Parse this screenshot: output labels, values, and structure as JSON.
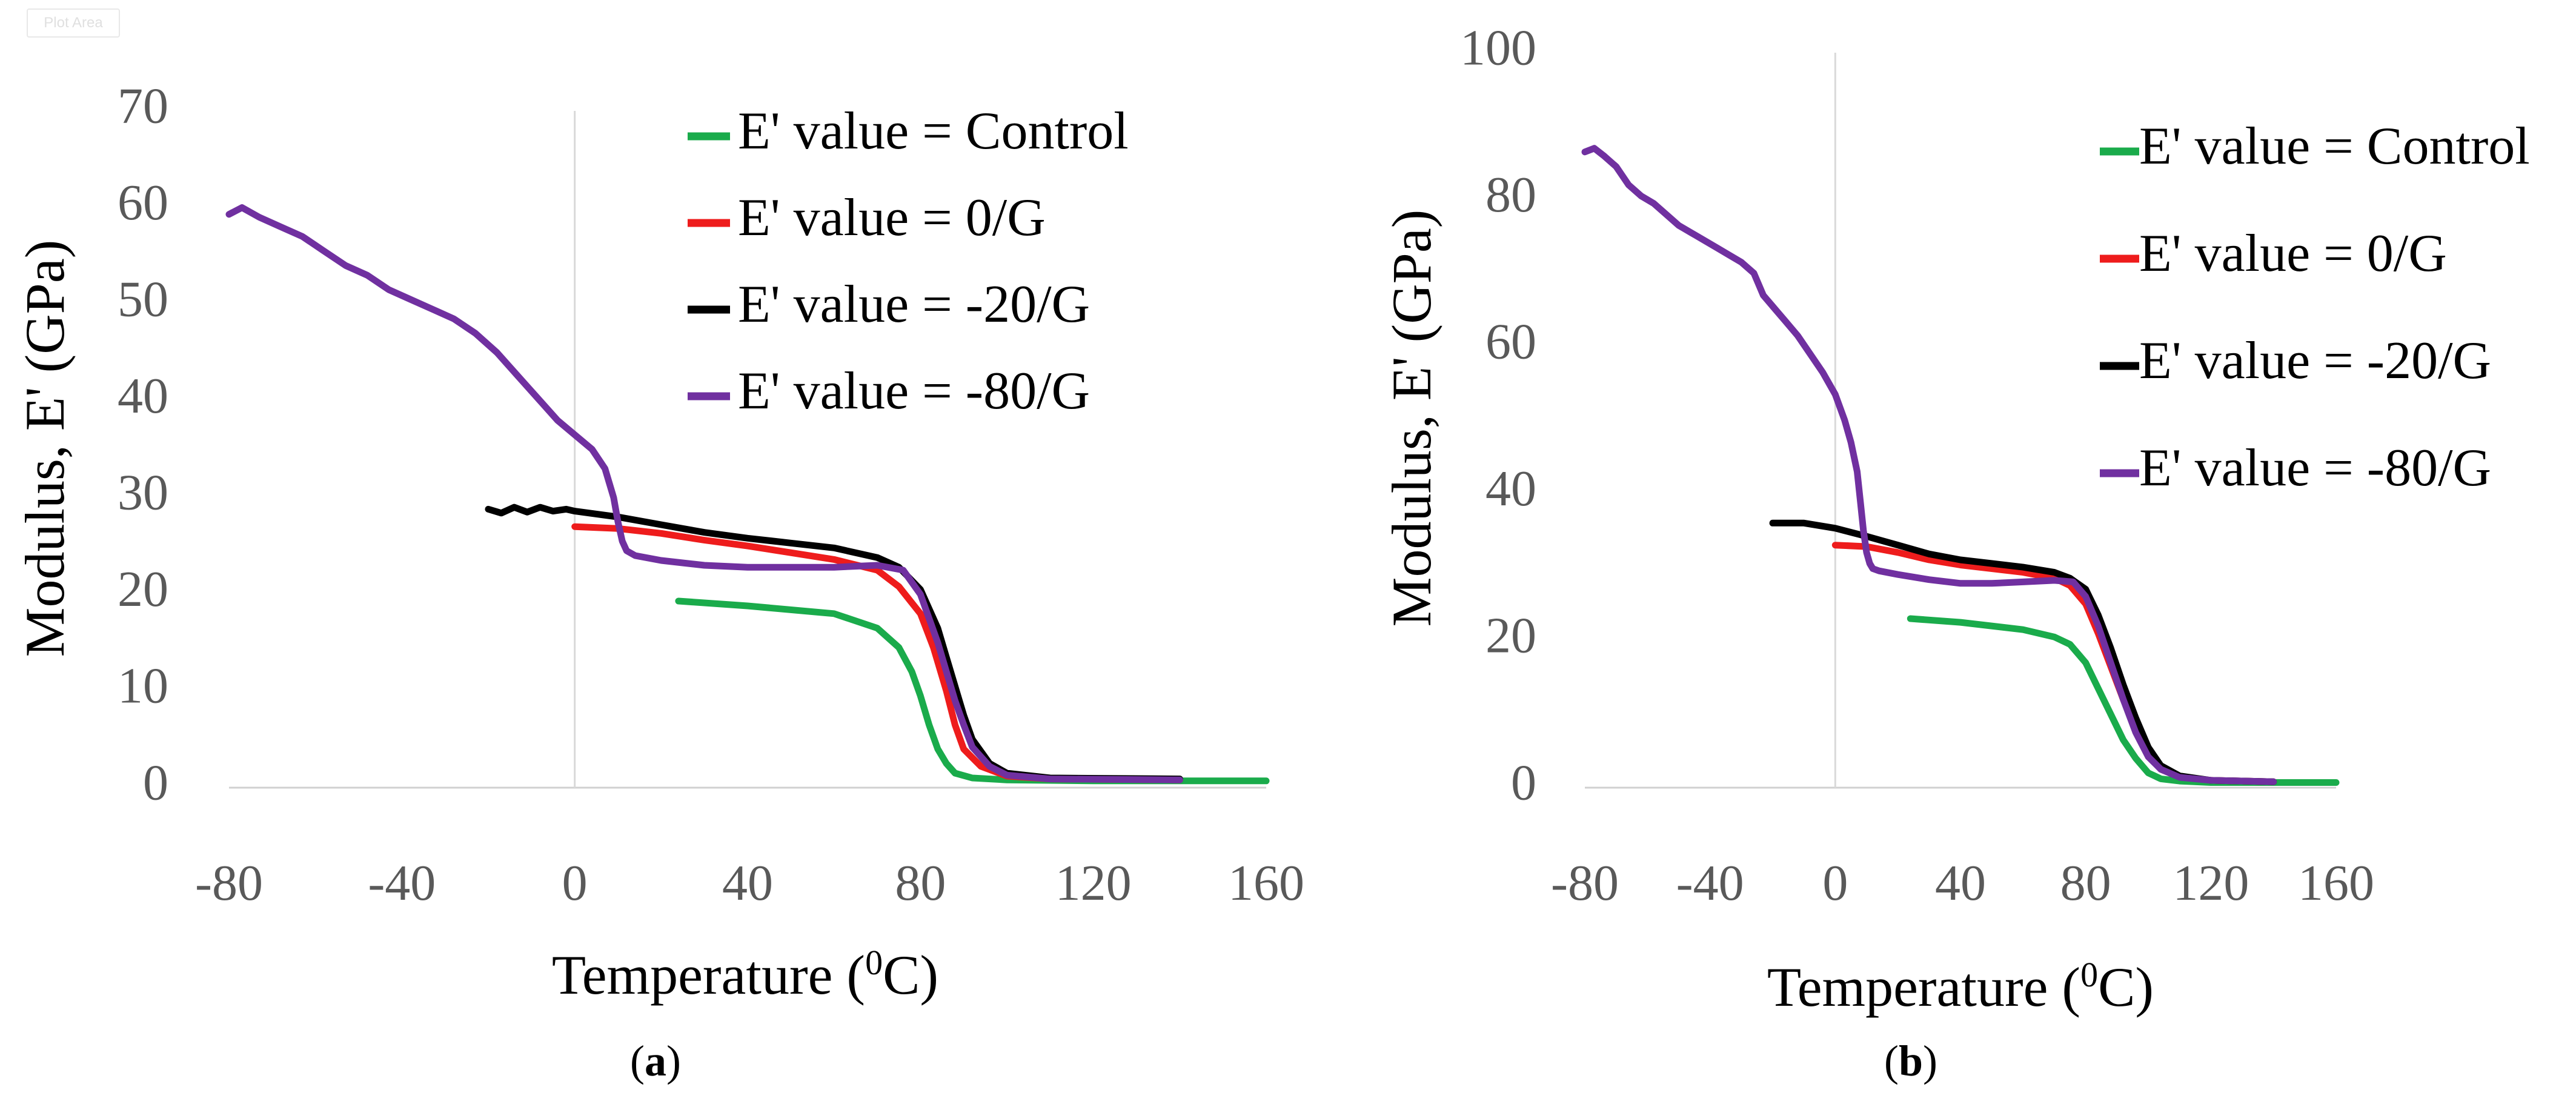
{
  "figure": {
    "badge_text": "Plot Area",
    "panel_labels": [
      {
        "open": "(",
        "letter": "a",
        "close": ")"
      },
      {
        "open": "(",
        "letter": "b",
        "close": ")"
      }
    ]
  },
  "colors": {
    "Control": "#1aab4b",
    "0/G": "#ee1c1c",
    "-20/G": "#000000",
    "-80/G": "#7030a0",
    "axis_text": "#595959",
    "title_text": "#000000",
    "zero_line": "#d9d9d9",
    "axis_line": "#d0d0d0"
  },
  "chart_data": [
    {
      "id": "a",
      "type": "line",
      "xlabel": "Temperature (",
      "xlabel_sup": "0",
      "xlabel_end": "C)",
      "ylabel": "Modulus, E' (GPa)",
      "xlim": [
        -80,
        160
      ],
      "ylim": [
        0,
        70
      ],
      "xticks": [
        -80,
        -40,
        0,
        40,
        80,
        120,
        160
      ],
      "yticks": [
        0,
        10,
        20,
        30,
        40,
        50,
        60,
        70
      ],
      "legend_position": "top-right",
      "series": [
        {
          "name": "E' value = Control",
          "key": "Control",
          "x": [
            24,
            40,
            60,
            70,
            75,
            78,
            80,
            82,
            84,
            86,
            88,
            92,
            100,
            120,
            160
          ],
          "y": [
            19.3,
            18.8,
            18.0,
            16.5,
            14.5,
            12.0,
            9.5,
            6.5,
            4.0,
            2.5,
            1.5,
            1.0,
            0.8,
            0.7,
            0.7
          ]
        },
        {
          "name": "E' value = 0/G",
          "key": "0/G",
          "x": [
            0,
            10,
            20,
            30,
            40,
            50,
            60,
            70,
            75,
            80,
            83,
            86,
            88,
            90,
            94,
            100,
            110,
            140
          ],
          "y": [
            27.0,
            26.8,
            26.3,
            25.6,
            25.0,
            24.3,
            23.6,
            22.5,
            20.8,
            18.0,
            14.5,
            10.0,
            6.5,
            4.0,
            2.2,
            1.2,
            0.9,
            0.8
          ]
        },
        {
          "name": "E' value = -20/G",
          "key": "-20/G",
          "x": [
            -20,
            -17,
            -14,
            -11,
            -8,
            -5,
            -2,
            0,
            10,
            20,
            30,
            40,
            50,
            60,
            70,
            75,
            80,
            84,
            86,
            88,
            90,
            92,
            96,
            100,
            110,
            140
          ],
          "y": [
            28.8,
            28.4,
            29.0,
            28.5,
            29.0,
            28.6,
            28.8,
            28.6,
            28.0,
            27.2,
            26.4,
            25.8,
            25.3,
            24.8,
            23.8,
            22.8,
            20.5,
            16.5,
            13.5,
            10.5,
            7.5,
            5.0,
            2.5,
            1.5,
            1.0,
            0.9
          ]
        },
        {
          "name": "E' value = -80/G",
          "key": "-80/G",
          "x": [
            -80,
            -77,
            -73,
            -68,
            -63,
            -58,
            -53,
            -48,
            -43,
            -38,
            -33,
            -28,
            -23,
            -18,
            -13,
            -8,
            -4,
            0,
            4,
            7,
            9,
            10,
            11,
            12,
            14,
            20,
            30,
            40,
            50,
            60,
            70,
            76,
            80,
            84,
            86,
            88,
            90,
            92,
            96,
            100,
            110,
            140
          ],
          "y": [
            59.3,
            60.0,
            59.0,
            58.0,
            57.0,
            55.5,
            54.0,
            53.0,
            51.5,
            50.5,
            49.5,
            48.5,
            47.0,
            45.0,
            42.5,
            40.0,
            38.0,
            36.5,
            35.0,
            33.0,
            30.0,
            27.5,
            25.5,
            24.5,
            24.0,
            23.5,
            23.0,
            22.8,
            22.8,
            22.8,
            23.0,
            22.5,
            20.0,
            15.0,
            12.0,
            9.0,
            6.5,
            4.2,
            2.2,
            1.3,
            0.9,
            0.8
          ]
        }
      ]
    },
    {
      "id": "b",
      "type": "line",
      "xlabel": "Temperature (",
      "xlabel_sup": "0",
      "xlabel_end": "C)",
      "ylabel": "Modulus, E' (GPa)",
      "xlim": [
        -80,
        160
      ],
      "ylim": [
        0,
        100
      ],
      "xticks": [
        -80,
        -40,
        0,
        40,
        80,
        120,
        160
      ],
      "yticks": [
        0,
        20,
        40,
        60,
        80,
        100
      ],
      "legend_position": "top-right",
      "series": [
        {
          "name": "E' value = Control",
          "key": "Control",
          "x": [
            24,
            40,
            60,
            70,
            75,
            80,
            84,
            88,
            92,
            96,
            100,
            104,
            110,
            120,
            160
          ],
          "y": [
            23.0,
            22.5,
            21.5,
            20.5,
            19.5,
            17.0,
            13.5,
            10.0,
            6.5,
            4.0,
            2.0,
            1.2,
            0.9,
            0.7,
            0.7
          ]
        },
        {
          "name": "E' value = 0/G",
          "key": "0/G",
          "x": [
            0,
            10,
            20,
            30,
            40,
            50,
            60,
            70,
            75,
            80,
            84,
            88,
            92,
            96,
            100,
            104,
            110,
            120,
            140
          ],
          "y": [
            33.0,
            32.8,
            32.0,
            31.0,
            30.3,
            29.8,
            29.3,
            28.5,
            27.5,
            25.0,
            21.0,
            16.5,
            12.0,
            8.0,
            4.5,
            2.5,
            1.5,
            1.0,
            0.8
          ]
        },
        {
          "name": "E' value = -20/G",
          "key": "-20/G",
          "x": [
            -20,
            -10,
            0,
            10,
            20,
            30,
            40,
            50,
            60,
            70,
            75,
            80,
            84,
            88,
            92,
            96,
            100,
            104,
            110,
            120,
            140
          ],
          "y": [
            36.0,
            36.0,
            35.3,
            34.2,
            33.0,
            31.8,
            31.0,
            30.5,
            30.0,
            29.3,
            28.5,
            27.0,
            23.5,
            19.0,
            14.0,
            9.5,
            5.5,
            3.0,
            1.6,
            1.0,
            0.8
          ]
        },
        {
          "name": "E' value = -80/G",
          "key": "-80/G",
          "x": [
            -80,
            -77,
            -74,
            -70,
            -66,
            -62,
            -58,
            -54,
            -50,
            -46,
            -42,
            -38,
            -34,
            -30,
            -26,
            -23,
            -20,
            -16,
            -12,
            -8,
            -4,
            0,
            3,
            5,
            7,
            8,
            9,
            10,
            11,
            12,
            14,
            20,
            30,
            40,
            50,
            60,
            70,
            76,
            80,
            84,
            88,
            92,
            96,
            100,
            104,
            110,
            120,
            140
          ],
          "y": [
            86.5,
            87.0,
            86.0,
            84.5,
            82.0,
            80.5,
            79.5,
            78.0,
            76.5,
            75.5,
            74.5,
            73.5,
            72.5,
            71.5,
            70.0,
            67.0,
            65.5,
            63.5,
            61.5,
            59.0,
            56.5,
            53.5,
            50.0,
            47.0,
            43.0,
            39.0,
            35.0,
            32.0,
            30.5,
            29.8,
            29.5,
            29.0,
            28.3,
            27.8,
            27.8,
            28.0,
            28.2,
            28.0,
            26.0,
            22.0,
            17.0,
            12.0,
            7.5,
            4.2,
            2.5,
            1.4,
            1.0,
            0.8
          ]
        }
      ]
    }
  ]
}
